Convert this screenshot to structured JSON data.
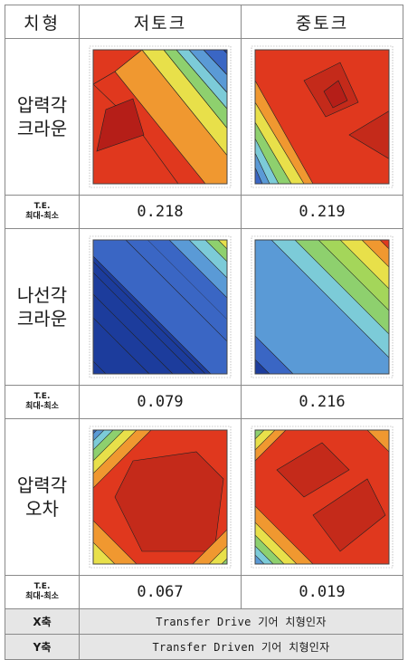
{
  "header": {
    "col_shape": "치형",
    "col_low_torque": "저토크",
    "col_mid_torque": "중토크"
  },
  "rows": [
    {
      "label_line1": "압력각",
      "label_line2": "크라운",
      "te_label_line1": "T.E.",
      "te_label_line2": "최대-최소",
      "te_low": "0.218",
      "te_mid": "0.219"
    },
    {
      "label_line1": "나선각",
      "label_line2": "크라운",
      "te_label_line1": "T.E.",
      "te_label_line2": "최대-최소",
      "te_low": "0.079",
      "te_mid": "0.216"
    },
    {
      "label_line1": "압력각",
      "label_line2": "오차",
      "te_label_line1": "T.E.",
      "te_label_line2": "최대-최소",
      "te_low": "0.067",
      "te_mid": "0.019"
    }
  ],
  "axes": {
    "x_label": "X축",
    "x_desc": "Transfer Drive 기어 치형인자",
    "y_label": "Y축",
    "y_desc": "Transfer Driven 기어 치형인자"
  },
  "colors": {
    "grid_border": "#8a8a8a",
    "axis_row_bg": "#e6e6e6",
    "palette": [
      "#1c3c9c",
      "#3a66c4",
      "#5a9ad6",
      "#7ccbd8",
      "#8ed06e",
      "#e8e04a",
      "#f09830",
      "#e0381e"
    ]
  }
}
